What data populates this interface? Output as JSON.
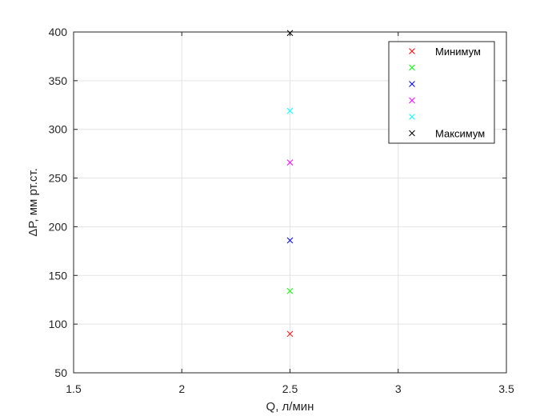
{
  "chart_data": {
    "type": "scatter",
    "title": "",
    "xlabel": "Q, л/мин",
    "ylabel": "ΔP, мм рт.ст.",
    "xlim": [
      1.5,
      3.5
    ],
    "ylim": [
      50,
      400
    ],
    "xticks": [
      "1.5",
      "2",
      "2.5",
      "3",
      "3.5"
    ],
    "yticks": [
      "50",
      "100",
      "150",
      "200",
      "250",
      "300",
      "350",
      "400"
    ],
    "grid": true,
    "marker": "x",
    "legend_position": "top-right",
    "series": [
      {
        "name": "Минимум",
        "color": "#ff0000",
        "x": [
          2.5
        ],
        "y": [
          90
        ]
      },
      {
        "name": "",
        "color": "#00ff00",
        "x": [
          2.5
        ],
        "y": [
          134
        ]
      },
      {
        "name": "",
        "color": "#0000ff",
        "x": [
          2.5
        ],
        "y": [
          186
        ]
      },
      {
        "name": "",
        "color": "#ff00ff",
        "x": [
          2.5
        ],
        "y": [
          266
        ]
      },
      {
        "name": "",
        "color": "#00ffff",
        "x": [
          2.5
        ],
        "y": [
          319
        ]
      },
      {
        "name": "Максимум",
        "color": "#000000",
        "x": [
          2.5
        ],
        "y": [
          399
        ]
      }
    ]
  }
}
